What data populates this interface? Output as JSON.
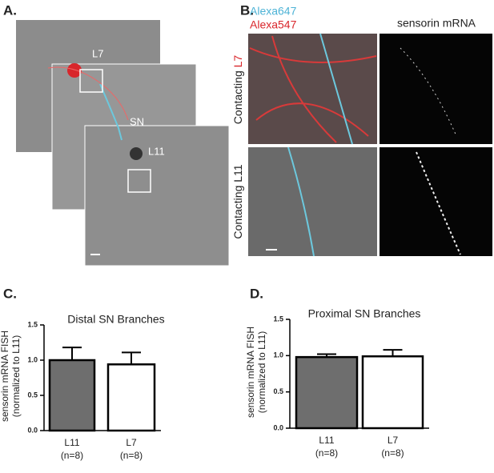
{
  "panels": {
    "a": {
      "label": "A.",
      "cells": [
        "L7",
        "SN",
        "L11"
      ]
    },
    "b": {
      "label": "B.",
      "stains": [
        "Alexa647",
        "Alexa547"
      ],
      "column": "sensorin mRNA",
      "rows": [
        {
          "text": "Contacting",
          "cell": "L7"
        },
        {
          "text": "Contacting",
          "cell": "L11"
        }
      ]
    },
    "c": {
      "label": "C."
    },
    "d": {
      "label": "D."
    }
  },
  "chart_data": [
    {
      "type": "bar",
      "title": "Distal SN Branches",
      "ylabel": [
        "sensorin mRNA FISH",
        "(normalized to L11)"
      ],
      "categories": [
        "L11",
        "L7"
      ],
      "category_notes": [
        "(n=8)",
        "(n=8)"
      ],
      "values": [
        1.0,
        0.94
      ],
      "errors": [
        0.18,
        0.17
      ],
      "colors": [
        "#6e6e6e",
        "#ffffff"
      ],
      "ylim": [
        0,
        1.5
      ],
      "yticks": [
        {
          "value": 0,
          "label": "0.0"
        },
        {
          "value": 0.5,
          "label": "0.5"
        },
        {
          "value": 1,
          "label": "1.0"
        },
        {
          "value": 1.5,
          "label": "1.5"
        }
      ]
    },
    {
      "type": "bar",
      "title": "Proximal SN Branches",
      "ylabel": [
        "sensorin mRNA FISH",
        "(normalized to L11)"
      ],
      "categories": [
        "L11",
        "L7"
      ],
      "category_notes": [
        "(n=8)",
        "(n=8)"
      ],
      "values": [
        0.98,
        0.99
      ],
      "errors": [
        0.04,
        0.09
      ],
      "colors": [
        "#6e6e6e",
        "#ffffff"
      ],
      "ylim": [
        0,
        1.5
      ],
      "yticks": [
        {
          "value": 0,
          "label": "0.0"
        },
        {
          "value": 0.5,
          "label": "0.5"
        },
        {
          "value": 1,
          "label": "1.0"
        },
        {
          "value": 1.5,
          "label": "1.5"
        }
      ]
    }
  ]
}
